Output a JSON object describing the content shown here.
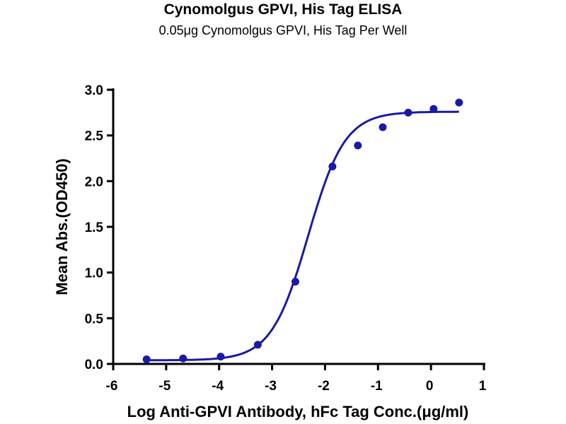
{
  "chart_data": {
    "type": "scatter",
    "title": "Cynomolgus GPVI, His Tag ELISA",
    "subtitle": "0.05μg Cynomolgus GPVI, His Tag Per Well",
    "xlabel": "Log Anti-GPVI Antibody, hFc Tag Conc.(μg/ml)",
    "ylabel": "Mean Abs.(OD450)",
    "xlim": [
      -6,
      1
    ],
    "ylim": [
      0,
      3.0
    ],
    "xticks": [
      "-6",
      "-5",
      "-4",
      "-3",
      "-2",
      "-1",
      "0",
      "1"
    ],
    "yticks": [
      "0.0",
      "0.5",
      "1.0",
      "1.5",
      "2.0",
      "2.5",
      "3.0"
    ],
    "grid": false,
    "color": "#1a1aa6",
    "points": {
      "x": [
        -5.37,
        -4.68,
        -3.97,
        -3.27,
        -2.56,
        -1.86,
        -1.38,
        -0.91,
        -0.43,
        0.05,
        0.53
      ],
      "y": [
        0.05,
        0.06,
        0.08,
        0.21,
        0.9,
        2.16,
        2.39,
        2.59,
        2.75,
        2.79,
        2.86
      ]
    },
    "fit": {
      "model": "4PL",
      "bottom": 0.04,
      "top": 2.76,
      "logEC50": -2.32,
      "hill": 1.25,
      "x_range": [
        -5.37,
        0.53
      ]
    }
  }
}
